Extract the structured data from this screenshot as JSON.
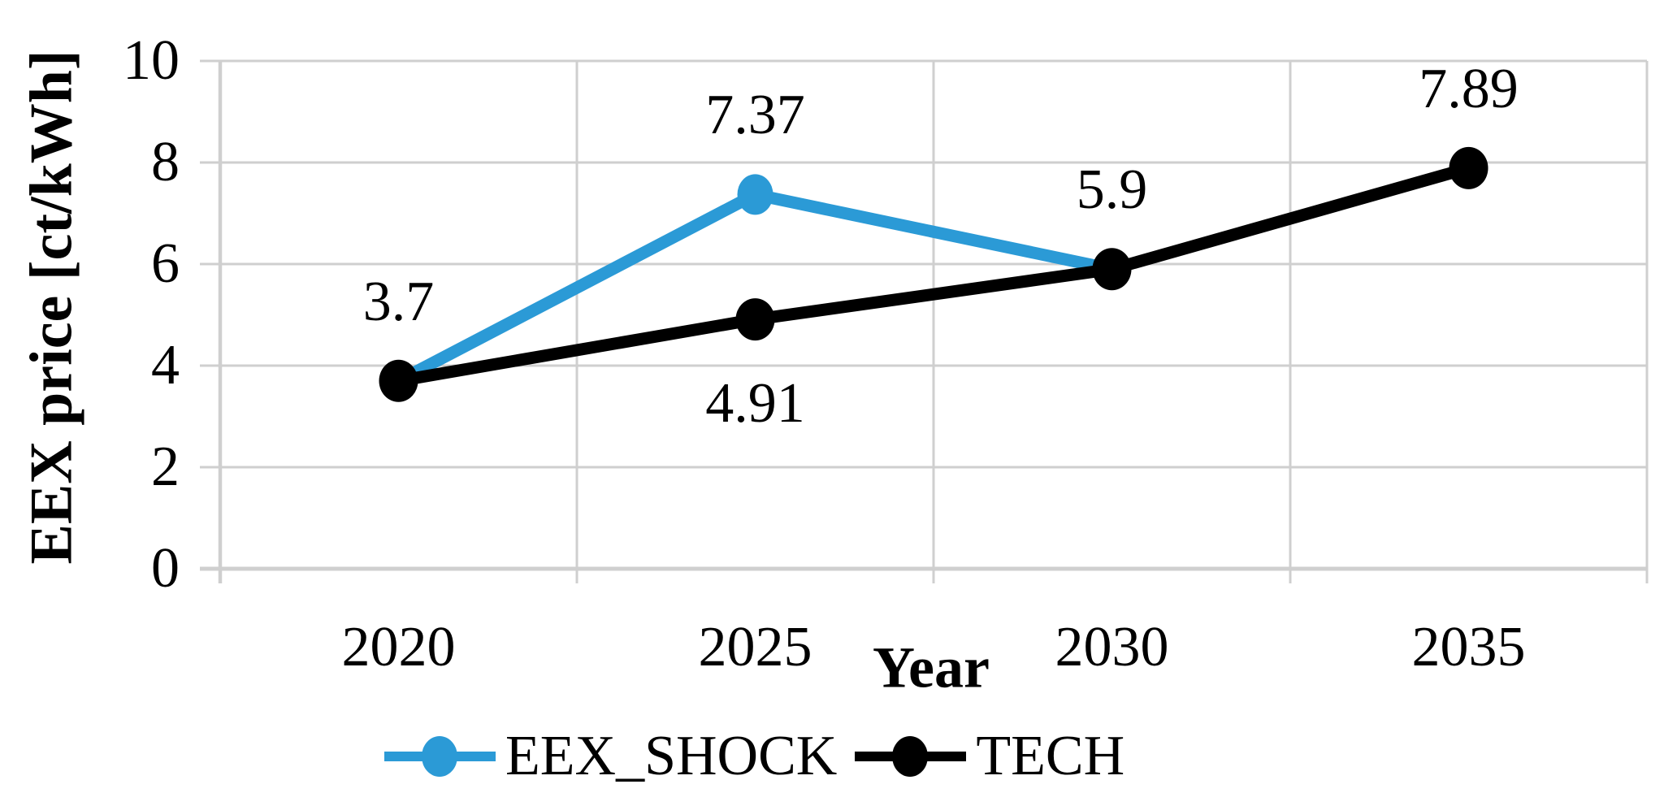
{
  "chart_data": {
    "type": "line",
    "title": "",
    "xlabel": "Year",
    "ylabel": "EEX price [ct/kWh]",
    "categories": [
      "2020",
      "2025",
      "2030",
      "2035"
    ],
    "ylim": [
      0,
      10
    ],
    "yticks": [
      0,
      2,
      4,
      6,
      8,
      10
    ],
    "grid": {
      "horizontal": true,
      "vertical": true,
      "color": "#cfcfcf"
    },
    "axis_color": "#c4c4c4",
    "legend_position": "bottom",
    "series": [
      {
        "name": "EEX_SHOCK",
        "color": "#2b9ad6",
        "values": [
          3.7,
          7.37,
          5.9,
          null
        ],
        "data_labels": [
          null,
          "7.37",
          null,
          null
        ],
        "label_placement": [
          null,
          "above",
          null,
          null
        ]
      },
      {
        "name": "TECH",
        "color": "#000000",
        "values": [
          3.7,
          4.91,
          5.9,
          7.89
        ],
        "data_labels": [
          "3.7",
          "4.91",
          "5.9",
          "7.89"
        ],
        "label_placement": [
          "above",
          "below",
          "above",
          "above"
        ]
      }
    ]
  }
}
